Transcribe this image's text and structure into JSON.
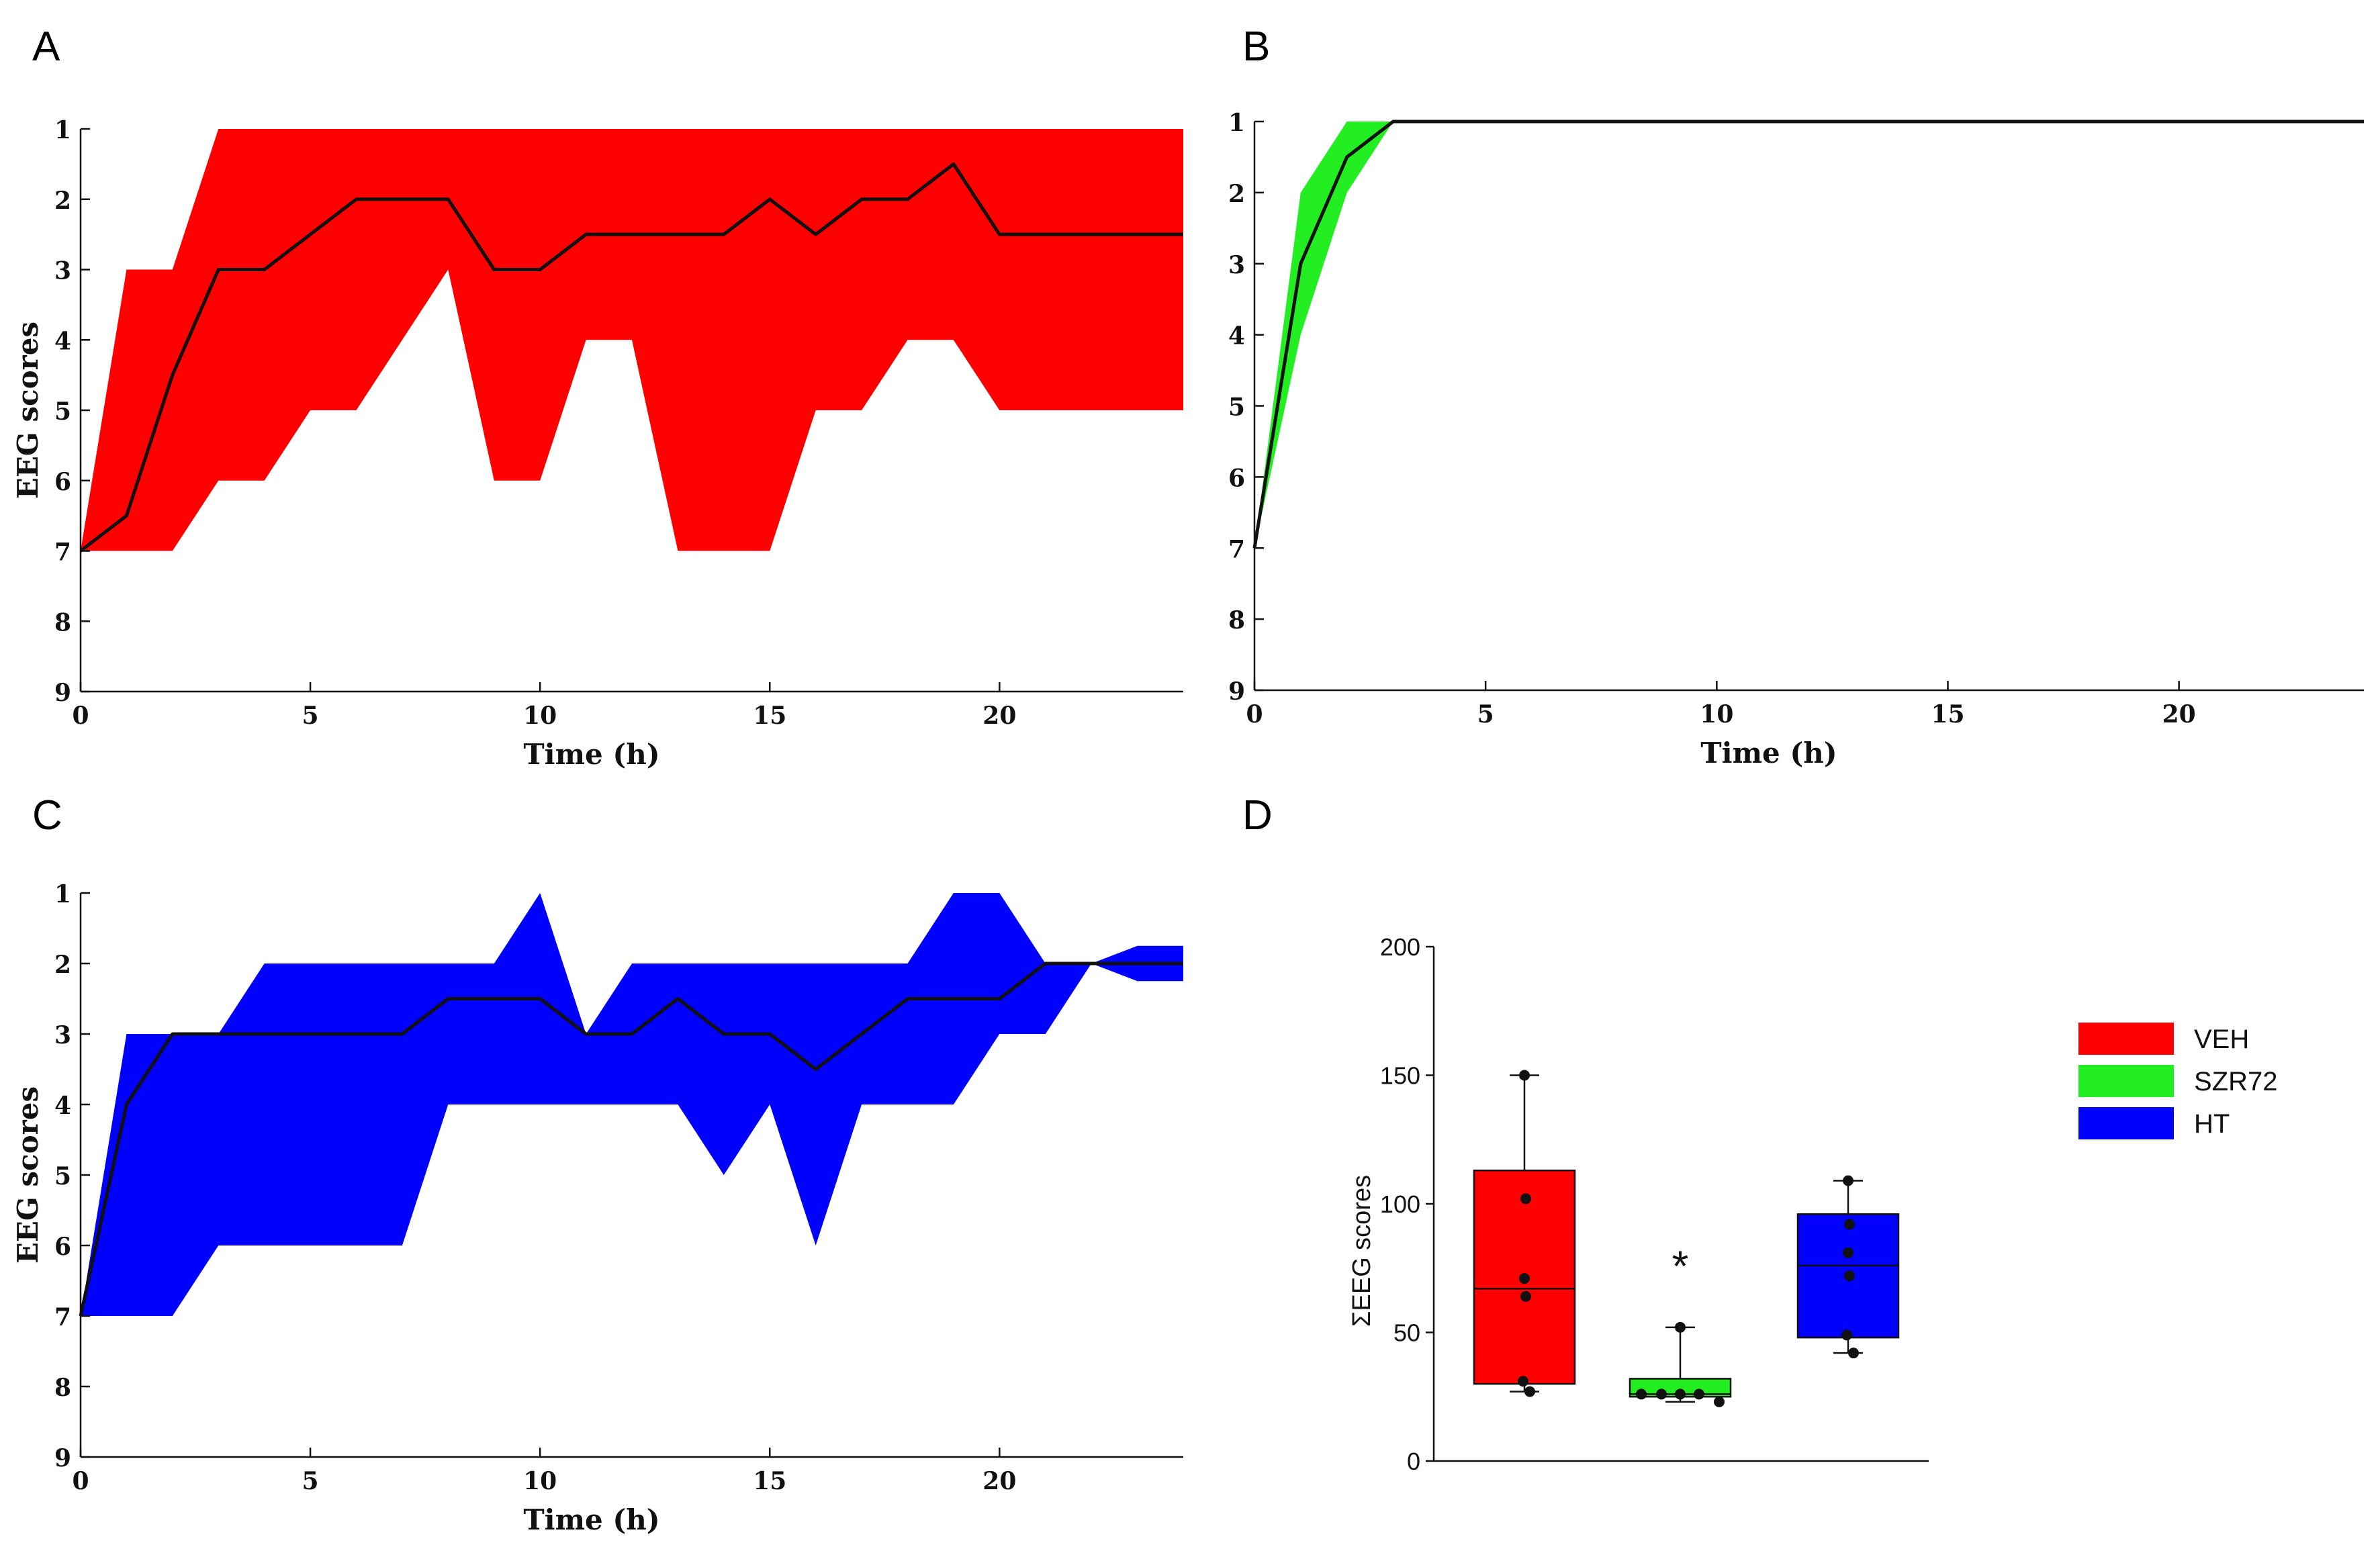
{
  "panel_labels": [
    "A",
    "B",
    "C",
    "D"
  ],
  "colors": {
    "A": "#ff0000",
    "B": "#22ee22",
    "C": "#0000ff",
    "median_line": "#111111",
    "axis": "#111111"
  },
  "chart_data": [
    {
      "panel": "A",
      "type": "area",
      "title": "",
      "xlabel": "Time (h)",
      "ylabel": "EEG scores",
      "xlim": [
        0,
        24
      ],
      "ylim": [
        1,
        9
      ],
      "y_inverted": true,
      "xticks": [
        0,
        5,
        10,
        15,
        20
      ],
      "yticks": [
        1,
        2,
        3,
        4,
        5,
        6,
        7,
        8,
        9
      ],
      "x": [
        0,
        1,
        2,
        3,
        4,
        5,
        6,
        7,
        8,
        9,
        10,
        11,
        12,
        13,
        14,
        15,
        16,
        17,
        18,
        19,
        20,
        21,
        22,
        23,
        24
      ],
      "series": [
        {
          "name": "median",
          "values": [
            7,
            6.5,
            4.5,
            3,
            3,
            2.5,
            2,
            2,
            2,
            3,
            3,
            2.5,
            2.5,
            2.5,
            2.5,
            2,
            2.5,
            2,
            2,
            1.5,
            2.5,
            2.5,
            2.5,
            2.5,
            2.5
          ]
        },
        {
          "name": "band_best",
          "values": [
            7,
            3,
            3,
            1,
            1,
            1,
            1,
            1,
            1,
            1,
            1,
            1,
            1,
            1,
            1,
            1,
            1,
            1,
            1,
            1,
            1,
            1,
            1,
            1,
            1
          ]
        },
        {
          "name": "band_worst",
          "values": [
            7,
            7,
            7,
            6,
            6,
            5,
            5,
            4,
            3,
            6,
            6,
            4,
            4,
            7,
            7,
            7,
            5,
            5,
            4,
            4,
            5,
            5,
            5,
            5,
            5
          ]
        }
      ]
    },
    {
      "panel": "B",
      "type": "area",
      "title": "",
      "xlabel": "Time (h)",
      "ylabel": "",
      "xlim": [
        0,
        24
      ],
      "ylim": [
        1,
        9
      ],
      "y_inverted": true,
      "xticks": [
        0,
        5,
        10,
        15,
        20
      ],
      "yticks": [
        1,
        2,
        3,
        4,
        5,
        6,
        7,
        8,
        9
      ],
      "x": [
        0,
        1,
        2,
        3,
        24
      ],
      "series": [
        {
          "name": "median",
          "values": [
            7,
            3,
            1.5,
            1,
            1
          ]
        },
        {
          "name": "band_best",
          "values": [
            7,
            2,
            1,
            1,
            1
          ]
        },
        {
          "name": "band_worst",
          "values": [
            7,
            4,
            2,
            1,
            1
          ]
        }
      ]
    },
    {
      "panel": "C",
      "type": "area",
      "title": "",
      "xlabel": "Time (h)",
      "ylabel": "EEG scores",
      "xlim": [
        0,
        24
      ],
      "ylim": [
        1,
        9
      ],
      "y_inverted": true,
      "xticks": [
        0,
        5,
        10,
        15,
        20
      ],
      "yticks": [
        1,
        2,
        3,
        4,
        5,
        6,
        7,
        8,
        9
      ],
      "x": [
        0,
        1,
        2,
        3,
        4,
        5,
        6,
        7,
        8,
        9,
        10,
        11,
        12,
        13,
        14,
        15,
        16,
        17,
        18,
        19,
        20,
        21,
        22,
        23,
        24
      ],
      "series": [
        {
          "name": "median",
          "values": [
            7,
            4,
            3,
            3,
            3,
            3,
            3,
            3,
            2.5,
            2.5,
            2.5,
            3,
            3,
            2.5,
            3,
            3,
            3.5,
            3,
            2.5,
            2.5,
            2.5,
            2,
            2,
            2,
            2
          ]
        },
        {
          "name": "band_best",
          "values": [
            7,
            3,
            3,
            3,
            2,
            2,
            2,
            2,
            2,
            2,
            1,
            3,
            2,
            2,
            2,
            2,
            2,
            2,
            2,
            1,
            1,
            2,
            2,
            1.75,
            1.75
          ]
        },
        {
          "name": "band_worst",
          "values": [
            7,
            7,
            7,
            6,
            6,
            6,
            6,
            6,
            4,
            4,
            4,
            4,
            4,
            4,
            5,
            4,
            6,
            4,
            4,
            4,
            3,
            3,
            2,
            2.25,
            2.25
          ]
        }
      ]
    },
    {
      "panel": "D",
      "type": "box",
      "title": "",
      "xlabel": "",
      "ylabel": "ΣEEG scores",
      "ylim": [
        0,
        200
      ],
      "yticks": [
        0,
        50,
        100,
        150,
        200
      ],
      "categories": [
        "VEH",
        "SZR72",
        "HT"
      ],
      "boxes": [
        {
          "name": "VEH",
          "min": 27,
          "q1": 30,
          "median": 67,
          "q3": 113,
          "max": 150,
          "points": [
            150,
            102,
            71,
            64,
            31,
            27
          ]
        },
        {
          "name": "SZR72",
          "min": 23,
          "q1": 25,
          "median": 26,
          "q3": 32,
          "max": 52,
          "points": [
            52,
            26,
            26,
            26,
            26,
            23
          ]
        },
        {
          "name": "HT",
          "min": 42,
          "q1": 48,
          "median": 76,
          "q3": 96,
          "max": 109,
          "points": [
            109,
            92,
            81,
            72,
            49,
            42
          ]
        }
      ],
      "annotations": [
        {
          "category": "SZR72",
          "text": "*"
        }
      ],
      "legend": {
        "placement": "right",
        "entries": [
          "VEH",
          "SZR72",
          "HT"
        ]
      }
    }
  ]
}
